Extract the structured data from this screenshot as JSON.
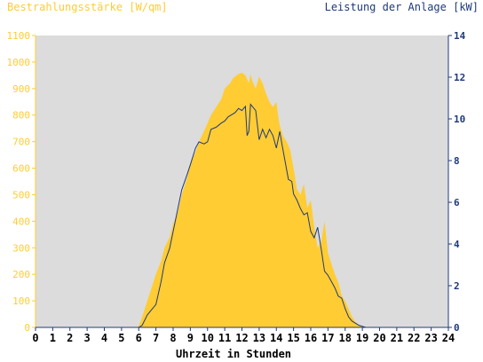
{
  "chart_data": {
    "type": "area",
    "title_left": "Bestrahlungsstärke [W/qm]",
    "title_right": "Leistung der Anlage [kW]",
    "xlabel": "Uhrzeit in Stunden",
    "x_ticks": [
      "0",
      "1",
      "2",
      "3",
      "4",
      "5",
      "6",
      "7",
      "8",
      "9",
      "10",
      "11",
      "12",
      "13",
      "14",
      "15",
      "16",
      "17",
      "18",
      "19",
      "20",
      "21",
      "22",
      "23",
      "24"
    ],
    "y_left_ticks": [
      "0",
      "100",
      "200",
      "300",
      "400",
      "500",
      "600",
      "700",
      "800",
      "900",
      "1000",
      "1100"
    ],
    "y_right_ticks": [
      "0",
      "2",
      "4",
      "6",
      "8",
      "10",
      "12",
      "14"
    ],
    "xlim": [
      0,
      24
    ],
    "ylim_left": [
      0,
      1100
    ],
    "ylim_right": [
      0,
      14
    ],
    "grid": false,
    "colors": {
      "irradiance": "#ffcc33",
      "power": "#1f3a7a",
      "plot_bg": "#dcdcdc",
      "left_axis_text": "#ffcc33",
      "right_axis_text": "#1f3a7a",
      "x_axis_text": "#000000"
    },
    "series": [
      {
        "axis": "left",
        "x": [
          0,
          5.9,
          6.0,
          6.2,
          6.5,
          6.8,
          7.0,
          7.3,
          7.5,
          7.8,
          8.0,
          8.3,
          8.5,
          8.8,
          9.0,
          9.3,
          9.5,
          9.8,
          10.0,
          10.2,
          10.5,
          10.8,
          11.0,
          11.3,
          11.5,
          11.8,
          12.0,
          12.2,
          12.4,
          12.5,
          12.6,
          12.8,
          13.0,
          13.2,
          13.4,
          13.6,
          13.8,
          14.0,
          14.1,
          14.2,
          14.4,
          14.6,
          14.8,
          15.0,
          15.2,
          15.4,
          15.6,
          15.8,
          16.0,
          16.2,
          16.4,
          16.6,
          16.8,
          17.0,
          17.2,
          17.4,
          17.6,
          17.8,
          18.0,
          18.2,
          18.4,
          18.6,
          18.8,
          19.0,
          19.2,
          24
        ],
        "values": [
          0,
          0,
          5,
          40,
          100,
          160,
          200,
          250,
          300,
          340,
          390,
          440,
          500,
          560,
          620,
          660,
          700,
          740,
          770,
          800,
          830,
          860,
          900,
          920,
          940,
          955,
          960,
          950,
          920,
          955,
          930,
          900,
          945,
          920,
          880,
          850,
          830,
          850,
          800,
          760,
          720,
          700,
          670,
          600,
          520,
          500,
          540,
          450,
          480,
          380,
          300,
          320,
          400,
          280,
          240,
          200,
          170,
          120,
          100,
          70,
          40,
          20,
          10,
          3,
          0,
          0
        ]
      },
      {
        "axis": "right",
        "x": [
          0,
          6.0,
          6.2,
          6.5,
          6.8,
          7.0,
          7.3,
          7.5,
          7.8,
          8.0,
          8.3,
          8.5,
          8.8,
          9.0,
          9.3,
          9.5,
          9.8,
          10.0,
          10.2,
          10.5,
          10.8,
          11.0,
          11.2,
          11.4,
          11.6,
          11.8,
          12.0,
          12.2,
          12.3,
          12.4,
          12.5,
          12.6,
          12.8,
          13.0,
          13.2,
          13.4,
          13.6,
          13.8,
          14.0,
          14.2,
          14.3,
          14.5,
          14.7,
          14.9,
          15.0,
          15.2,
          15.4,
          15.6,
          15.8,
          16.0,
          16.2,
          16.4,
          16.6,
          16.8,
          17.0,
          17.2,
          17.4,
          17.6,
          17.8,
          18.0,
          18.2,
          18.4,
          18.6,
          18.8,
          19.0,
          19.2,
          24
        ],
        "values": [
          0,
          0,
          0.1,
          0.6,
          0.9,
          1.1,
          2.2,
          3.1,
          3.8,
          4.6,
          5.8,
          6.6,
          7.3,
          7.8,
          8.6,
          8.9,
          8.8,
          8.9,
          9.5,
          9.6,
          9.8,
          9.9,
          10.1,
          10.2,
          10.3,
          10.5,
          10.4,
          10.6,
          9.2,
          9.4,
          10.7,
          10.6,
          10.4,
          9.0,
          9.5,
          9.1,
          9.5,
          9.2,
          8.6,
          9.4,
          8.9,
          8.0,
          7.1,
          7.0,
          6.4,
          6.1,
          5.7,
          5.4,
          5.5,
          4.6,
          4.3,
          4.8,
          3.8,
          2.7,
          2.5,
          2.2,
          1.9,
          1.5,
          1.4,
          0.9,
          0.5,
          0.3,
          0.2,
          0.1,
          0.05,
          0,
          0
        ]
      }
    ]
  }
}
